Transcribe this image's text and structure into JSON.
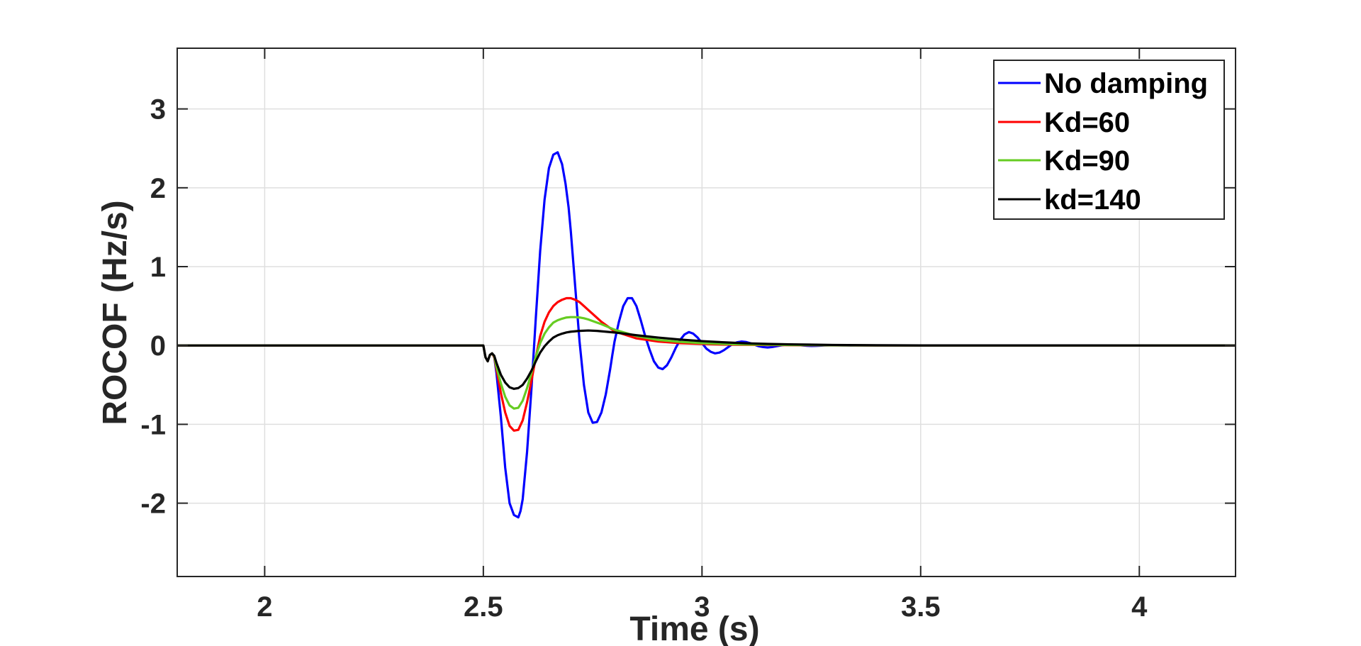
{
  "chart_data": {
    "type": "line",
    "title": "",
    "xlabel": "Time (s)",
    "ylabel": "ROCOF (Hz/s)",
    "xlim": [
      1.8,
      4.22
    ],
    "ylim": [
      -2.93,
      3.77
    ],
    "xticks": [
      2,
      2.5,
      3,
      3.5,
      4
    ],
    "xtick_labels": [
      "2",
      "2.5",
      "3",
      "3.5",
      "4"
    ],
    "yticks": [
      -2,
      -1,
      0,
      1,
      2,
      3
    ],
    "ytick_labels": [
      "-2",
      "-1",
      "0",
      "1",
      "2",
      "3"
    ],
    "grid": true,
    "legend_position": "top-right",
    "series": [
      {
        "name": "No damping",
        "color": "#0000ff",
        "x": [
          1.8,
          2.5,
          2.505,
          2.51,
          2.515,
          2.52,
          2.525,
          2.53,
          2.54,
          2.55,
          2.56,
          2.57,
          2.58,
          2.585,
          2.59,
          2.6,
          2.61,
          2.62,
          2.63,
          2.64,
          2.65,
          2.66,
          2.67,
          2.68,
          2.688,
          2.695,
          2.7,
          2.71,
          2.72,
          2.73,
          2.74,
          2.75,
          2.76,
          2.77,
          2.78,
          2.79,
          2.795,
          2.8,
          2.81,
          2.82,
          2.83,
          2.84,
          2.85,
          2.86,
          2.87,
          2.88,
          2.89,
          2.9,
          2.91,
          2.92,
          2.93,
          2.94,
          2.95,
          2.96,
          2.97,
          2.98,
          2.99,
          3.0,
          3.01,
          3.02,
          3.03,
          3.04,
          3.05,
          3.06,
          3.07,
          3.08,
          3.09,
          3.1,
          3.11,
          3.12,
          3.13,
          3.14,
          3.15,
          3.16,
          3.17,
          3.18,
          3.19,
          3.2,
          3.21,
          3.22,
          3.23,
          3.24,
          3.25,
          3.26,
          3.27,
          3.28,
          3.29,
          3.3,
          3.31,
          3.32,
          3.33,
          3.34,
          3.35,
          3.36,
          3.37,
          3.38,
          3.39,
          3.4,
          3.45,
          3.5,
          3.55,
          3.6,
          3.65,
          3.7,
          3.8,
          3.9,
          4.0,
          4.22
        ],
        "y": [
          0,
          0,
          -0.15,
          -0.2,
          -0.12,
          -0.1,
          -0.15,
          -0.35,
          -0.9,
          -1.55,
          -2.0,
          -2.15,
          -2.18,
          -2.1,
          -1.95,
          -1.35,
          -0.55,
          0.35,
          1.2,
          1.85,
          2.25,
          2.42,
          2.45,
          2.3,
          2.05,
          1.75,
          1.45,
          0.75,
          0.05,
          -0.5,
          -0.85,
          -0.98,
          -0.97,
          -0.85,
          -0.62,
          -0.3,
          -0.12,
          0.05,
          0.3,
          0.5,
          0.6,
          0.6,
          0.5,
          0.32,
          0.12,
          -0.05,
          -0.2,
          -0.28,
          -0.3,
          -0.25,
          -0.15,
          -0.03,
          0.07,
          0.14,
          0.17,
          0.15,
          0.1,
          0.03,
          -0.04,
          -0.08,
          -0.1,
          -0.09,
          -0.06,
          -0.02,
          0.02,
          0.04,
          0.05,
          0.045,
          0.03,
          0.01,
          -0.01,
          -0.02,
          -0.025,
          -0.02,
          -0.01,
          0.0,
          0.008,
          0.012,
          0.01,
          0.006,
          0.0,
          -0.004,
          -0.006,
          -0.005,
          -0.003,
          0.0,
          0.002,
          0.003,
          0.002,
          0.001,
          0.0,
          -0.001,
          0.0,
          0.0,
          0.0,
          0.0,
          0.0,
          0.0,
          0.0,
          0.0,
          0.0,
          0.0,
          0.0,
          0.0,
          0.0,
          0.0,
          0.0,
          0.0
        ]
      },
      {
        "name": "Kd=60",
        "color": "#ff0000",
        "x": [
          1.8,
          2.5,
          2.505,
          2.51,
          2.515,
          2.52,
          2.525,
          2.53,
          2.54,
          2.55,
          2.56,
          2.57,
          2.58,
          2.59,
          2.6,
          2.61,
          2.62,
          2.63,
          2.64,
          2.65,
          2.66,
          2.67,
          2.68,
          2.69,
          2.7,
          2.71,
          2.72,
          2.73,
          2.74,
          2.75,
          2.77,
          2.8,
          2.85,
          2.9,
          2.95,
          3.0,
          3.05,
          3.1,
          3.2,
          3.3,
          3.4,
          3.5,
          4.22
        ],
        "y": [
          0,
          0,
          -0.15,
          -0.2,
          -0.12,
          -0.1,
          -0.15,
          -0.3,
          -0.6,
          -0.85,
          -1.02,
          -1.08,
          -1.07,
          -0.95,
          -0.72,
          -0.45,
          -0.15,
          0.12,
          0.3,
          0.42,
          0.5,
          0.55,
          0.58,
          0.6,
          0.6,
          0.58,
          0.55,
          0.5,
          0.45,
          0.4,
          0.3,
          0.18,
          0.09,
          0.05,
          0.03,
          0.02,
          0.012,
          0.008,
          0.004,
          0.002,
          0.001,
          0.0,
          0.0
        ]
      },
      {
        "name": "Kd=90",
        "color": "#66cc22",
        "x": [
          1.8,
          2.5,
          2.505,
          2.51,
          2.515,
          2.52,
          2.525,
          2.53,
          2.54,
          2.55,
          2.56,
          2.57,
          2.58,
          2.59,
          2.6,
          2.61,
          2.62,
          2.63,
          2.64,
          2.65,
          2.66,
          2.67,
          2.68,
          2.69,
          2.7,
          2.71,
          2.72,
          2.73,
          2.74,
          2.75,
          2.77,
          2.8,
          2.85,
          2.9,
          2.95,
          3.0,
          3.05,
          3.1,
          3.2,
          3.3,
          3.4,
          3.5,
          4.22
        ],
        "y": [
          0,
          0,
          -0.15,
          -0.2,
          -0.12,
          -0.1,
          -0.14,
          -0.27,
          -0.48,
          -0.65,
          -0.76,
          -0.8,
          -0.79,
          -0.7,
          -0.54,
          -0.35,
          -0.14,
          0.03,
          0.15,
          0.23,
          0.29,
          0.32,
          0.34,
          0.355,
          0.36,
          0.36,
          0.355,
          0.345,
          0.33,
          0.31,
          0.27,
          0.2,
          0.12,
          0.07,
          0.045,
          0.03,
          0.02,
          0.013,
          0.006,
          0.003,
          0.001,
          0.0,
          0.0
        ]
      },
      {
        "name": "kd=140",
        "color": "#000000",
        "x": [
          1.8,
          2.5,
          2.505,
          2.51,
          2.515,
          2.52,
          2.525,
          2.53,
          2.54,
          2.55,
          2.56,
          2.57,
          2.58,
          2.59,
          2.6,
          2.61,
          2.62,
          2.63,
          2.64,
          2.65,
          2.66,
          2.67,
          2.68,
          2.69,
          2.7,
          2.72,
          2.74,
          2.76,
          2.78,
          2.8,
          2.85,
          2.9,
          2.95,
          3.0,
          3.05,
          3.1,
          3.15,
          3.2,
          3.3,
          3.4,
          3.5,
          4.22
        ],
        "y": [
          0,
          0,
          -0.15,
          -0.2,
          -0.12,
          -0.1,
          -0.13,
          -0.22,
          -0.37,
          -0.47,
          -0.53,
          -0.55,
          -0.54,
          -0.5,
          -0.42,
          -0.32,
          -0.2,
          -0.09,
          -0.01,
          0.05,
          0.1,
          0.13,
          0.15,
          0.165,
          0.175,
          0.185,
          0.19,
          0.185,
          0.175,
          0.165,
          0.13,
          0.1,
          0.075,
          0.055,
          0.04,
          0.028,
          0.02,
          0.014,
          0.007,
          0.003,
          0.001,
          0.0
        ]
      }
    ]
  }
}
